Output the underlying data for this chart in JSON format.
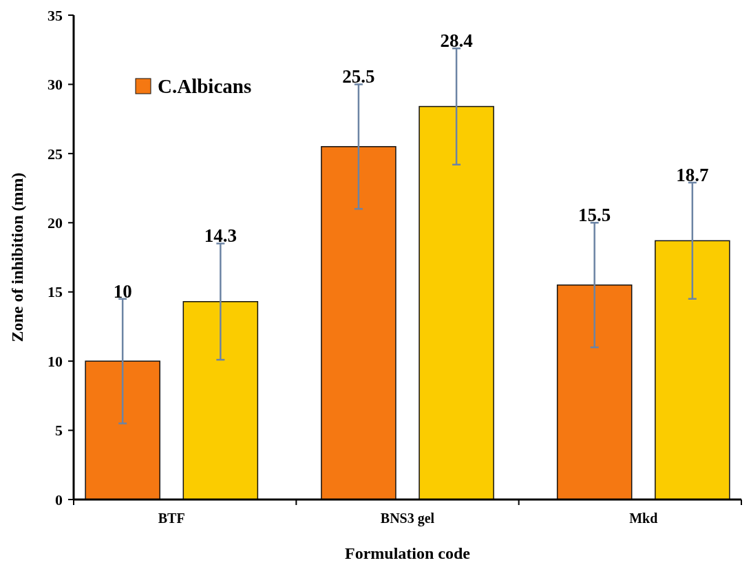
{
  "chart_data": {
    "type": "bar",
    "xlabel": "Formulation code",
    "ylabel": "Zone of inhibition (mm)",
    "categories": [
      "BTF",
      "BNS3 gel",
      "Mkd"
    ],
    "series": [
      {
        "name": "C.Albicans",
        "color": "#f57812",
        "values": [
          10,
          25.5,
          15.5
        ],
        "errors": [
          4.5,
          4.5,
          4.5
        ]
      },
      {
        "color": "#fbcc00",
        "values": [
          14.3,
          28.4,
          18.7
        ],
        "errors": [
          4.2,
          4.2,
          4.2
        ]
      }
    ],
    "ylim": [
      0,
      35
    ],
    "yticks": [
      0,
      5,
      10,
      15,
      20,
      25,
      30,
      35
    ],
    "data_labels": true,
    "legend": "top left",
    "grid": false
  }
}
